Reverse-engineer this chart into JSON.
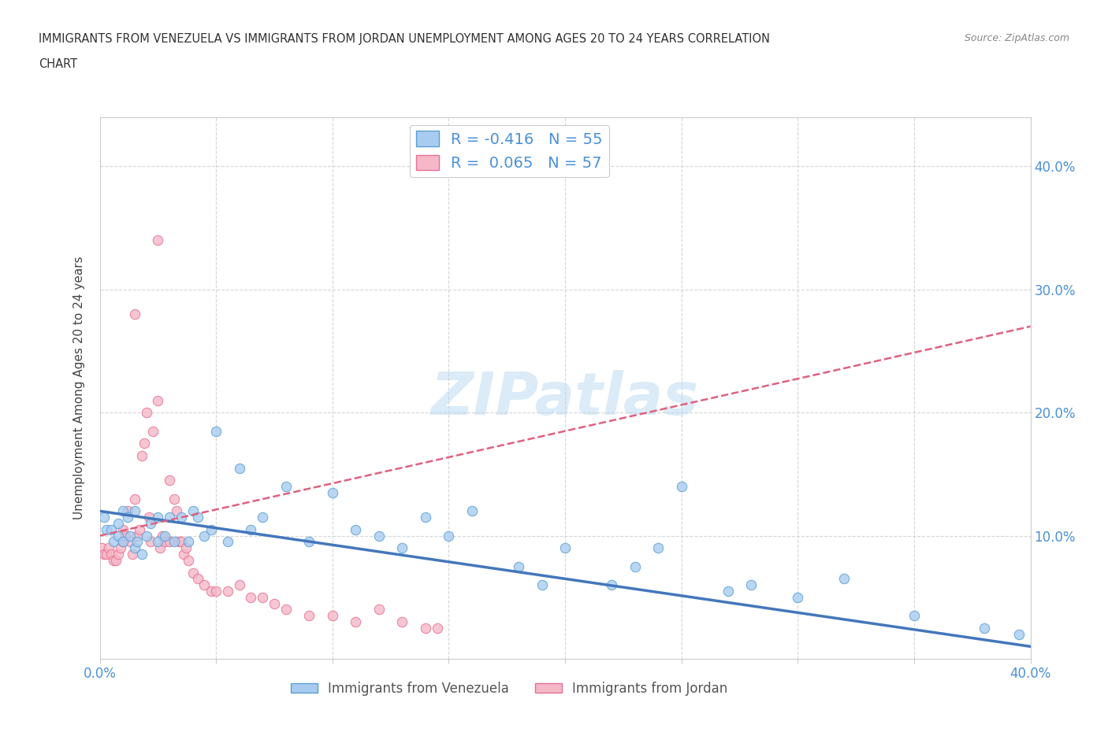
{
  "title_line1": "IMMIGRANTS FROM VENEZUELA VS IMMIGRANTS FROM JORDAN UNEMPLOYMENT AMONG AGES 20 TO 24 YEARS CORRELATION",
  "title_line2": "CHART",
  "source": "Source: ZipAtlas.com",
  "ylabel": "Unemployment Among Ages 20 to 24 years",
  "yticks_labels": [
    "10.0%",
    "20.0%",
    "30.0%",
    "40.0%"
  ],
  "ytick_vals": [
    0.1,
    0.2,
    0.3,
    0.4
  ],
  "legend_venezuela": "R = -0.416   N = 55",
  "legend_jordan": "R =  0.065   N = 57",
  "venezuela_color": "#A8CCF0",
  "jordan_color": "#F5B8C8",
  "venezuela_edge_color": "#5A9FD4",
  "jordan_edge_color": "#E87090",
  "venezuela_line_color": "#4477BB",
  "jordan_line_color": "#E06080",
  "watermark": "ZIPatlas",
  "xmin": 0.0,
  "xmax": 0.4,
  "ymin": 0.0,
  "ymax": 0.44,
  "venezuela_x": [
    0.002,
    0.003,
    0.005,
    0.006,
    0.008,
    0.008,
    0.01,
    0.01,
    0.012,
    0.013,
    0.015,
    0.015,
    0.016,
    0.018,
    0.02,
    0.022,
    0.025,
    0.025,
    0.028,
    0.03,
    0.032,
    0.035,
    0.038,
    0.04,
    0.042,
    0.045,
    0.048,
    0.05,
    0.055,
    0.06,
    0.065,
    0.07,
    0.08,
    0.09,
    0.1,
    0.11,
    0.12,
    0.13,
    0.14,
    0.15,
    0.16,
    0.18,
    0.19,
    0.2,
    0.22,
    0.23,
    0.24,
    0.25,
    0.27,
    0.28,
    0.3,
    0.32,
    0.35,
    0.38,
    0.395
  ],
  "venezuela_y": [
    0.115,
    0.105,
    0.105,
    0.095,
    0.1,
    0.11,
    0.12,
    0.095,
    0.115,
    0.1,
    0.12,
    0.09,
    0.095,
    0.085,
    0.1,
    0.11,
    0.095,
    0.115,
    0.1,
    0.115,
    0.095,
    0.115,
    0.095,
    0.12,
    0.115,
    0.1,
    0.105,
    0.185,
    0.095,
    0.155,
    0.105,
    0.115,
    0.14,
    0.095,
    0.135,
    0.105,
    0.1,
    0.09,
    0.115,
    0.1,
    0.12,
    0.075,
    0.06,
    0.09,
    0.06,
    0.075,
    0.09,
    0.14,
    0.055,
    0.06,
    0.05,
    0.065,
    0.035,
    0.025,
    0.02
  ],
  "jordan_x": [
    0.001,
    0.002,
    0.003,
    0.004,
    0.005,
    0.006,
    0.007,
    0.008,
    0.009,
    0.01,
    0.01,
    0.011,
    0.012,
    0.013,
    0.014,
    0.015,
    0.016,
    0.017,
    0.018,
    0.019,
    0.02,
    0.021,
    0.022,
    0.023,
    0.025,
    0.026,
    0.027,
    0.028,
    0.03,
    0.03,
    0.032,
    0.033,
    0.034,
    0.035,
    0.036,
    0.037,
    0.038,
    0.04,
    0.042,
    0.045,
    0.048,
    0.05,
    0.055,
    0.06,
    0.065,
    0.07,
    0.075,
    0.08,
    0.09,
    0.1,
    0.11,
    0.12,
    0.13,
    0.14,
    0.145,
    0.025,
    0.015
  ],
  "jordan_y": [
    0.09,
    0.085,
    0.085,
    0.09,
    0.085,
    0.08,
    0.08,
    0.085,
    0.09,
    0.095,
    0.105,
    0.1,
    0.12,
    0.095,
    0.085,
    0.13,
    0.1,
    0.105,
    0.165,
    0.175,
    0.2,
    0.115,
    0.095,
    0.185,
    0.21,
    0.09,
    0.1,
    0.095,
    0.145,
    0.095,
    0.13,
    0.12,
    0.095,
    0.095,
    0.085,
    0.09,
    0.08,
    0.07,
    0.065,
    0.06,
    0.055,
    0.055,
    0.055,
    0.06,
    0.05,
    0.05,
    0.045,
    0.04,
    0.035,
    0.035,
    0.03,
    0.04,
    0.03,
    0.025,
    0.025,
    0.34,
    0.28
  ]
}
